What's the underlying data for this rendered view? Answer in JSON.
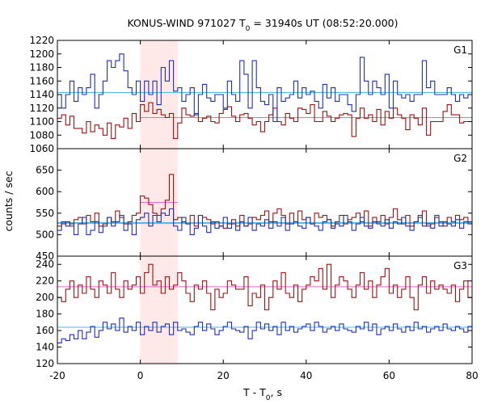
{
  "chart_data": {
    "type": "line",
    "title_main": "KONUS-WIND 971027 T",
    "title_sub": "0",
    "title_rest": " = 31940s UT (08:52:20.000)",
    "xlabel_main": "T - T",
    "xlabel_sub": "0",
    "xlabel_rest": ", s",
    "ylabel": "counts / sec",
    "xlim": [
      -20,
      80
    ],
    "x_ticks": [
      "-20",
      "0",
      "20",
      "40",
      "60",
      "80"
    ],
    "highlight_interval": [
      0,
      9
    ],
    "colors": {
      "background_band": "#ffe8e8",
      "series_red": "#a01010",
      "series_blue": "#2030b0",
      "bg_pink": "#ee66cc",
      "bg_cyan": "#44bbe8"
    },
    "bin_edges_start": -20,
    "bin_width": 1,
    "panels": [
      {
        "label": "G1",
        "ylim": [
          1060,
          1220
        ],
        "y_ticks": [
          "1060",
          "1080",
          "1100",
          "1120",
          "1140",
          "1160",
          "1180",
          "1200",
          "1220"
        ],
        "background_levels": [
          {
            "name": "red_bg",
            "value": 1106,
            "color": "bg_pink",
            "x_range": [
              0,
              80
            ]
          },
          {
            "name": "blue_bg",
            "value": 1143,
            "color": "bg_cyan",
            "x_range": [
              -20,
              80
            ]
          }
        ],
        "series": [
          {
            "color": "series_red",
            "values": [
              1105,
              1110,
              1095,
              1108,
              1090,
              1090,
              1083,
              1100,
              1085,
              1095,
              1090,
              1080,
              1098,
              1075,
              1095,
              1092,
              1105,
              1090,
              1112,
              1100,
              1125,
              1115,
              1128,
              1112,
              1118,
              1110,
              1106,
              1112,
              1075,
              1098,
              1120,
              1110,
              1108,
              1112,
              1100,
              1105,
              1108,
              1100,
              1098,
              1112,
              1118,
              1122,
              1108,
              1100,
              1110,
              1112,
              1105,
              1095,
              1100,
              1085,
              1100,
              1110,
              1120,
              1100,
              1095,
              1112,
              1105,
              1100,
              1120,
              1118,
              1112,
              1125,
              1100,
              1100,
              1115,
              1108,
              1100,
              1105,
              1110,
              1112,
              1110,
              1078,
              1105,
              1120,
              1105,
              1110,
              1100,
              1118,
              1095,
              1115,
              1105,
              1120,
              1110,
              1105,
              1088,
              1110,
              1105,
              1095,
              1120,
              1080,
              1100,
              1100,
              1100,
              1115,
              1125,
              1110,
              1110,
              1098,
              1100,
              1100
            ]
          },
          {
            "color": "series_blue",
            "values": [
              1140,
              1120,
              1140,
              1160,
              1130,
              1150,
              1140,
              1150,
              1170,
              1120,
              1140,
              1160,
              1190,
              1180,
              1190,
              1200,
              1175,
              1150,
              1140,
              1160,
              1130,
              1160,
              1140,
              1160,
              1125,
              1180,
              1160,
              1190,
              1145,
              1150,
              1130,
              1140,
              1150,
              1110,
              1140,
              1155,
              1135,
              1130,
              1140,
              1140,
              1120,
              1160,
              1140,
              1130,
              1190,
              1170,
              1120,
              1190,
              1150,
              1130,
              1125,
              1140,
              1100,
              1150,
              1130,
              1135,
              1140,
              1160,
              1135,
              1150,
              1140,
              1145,
              1130,
              1120,
              1155,
              1135,
              1150,
              1130,
              1140,
              1140,
              1125,
              1115,
              1140,
              1195,
              1160,
              1140,
              1160,
              1150,
              1140,
              1170,
              1120,
              1160,
              1140,
              1135,
              1140,
              1130,
              1140,
              1140,
              1190,
              1150,
              1160,
              1140,
              1140,
              1140,
              1150,
              1140,
              1130,
              1140,
              1135,
              1140
            ]
          }
        ]
      },
      {
        "label": "G2",
        "ylim": [
          450,
          700
        ],
        "y_ticks": [
          "450",
          "500",
          "550",
          "600",
          "650"
        ],
        "background_levels": [
          {
            "name": "red_bg",
            "value": 526,
            "color": "bg_pink",
            "x_range": [
              -20,
              80
            ]
          },
          {
            "name": "red_src",
            "value": 575,
            "color": "bg_pink",
            "x_range": [
              0,
              9
            ]
          },
          {
            "name": "blue_bg",
            "value": 528,
            "color": "bg_cyan",
            "x_range": [
              -20,
              80
            ]
          }
        ],
        "series": [
          {
            "color": "series_red",
            "values": [
              520,
              525,
              530,
              520,
              535,
              540,
              525,
              545,
              530,
              550,
              520,
              525,
              540,
              530,
              555,
              540,
              525,
              530,
              545,
              550,
              590,
              585,
              570,
              550,
              545,
              560,
              580,
              640,
              535,
              540,
              530,
              525,
              545,
              520,
              545,
              540,
              535,
              525,
              530,
              520,
              515,
              525,
              535,
              520,
              545,
              520,
              525,
              540,
              535,
              545,
              555,
              530,
              550,
              560,
              545,
              525,
              550,
              530,
              555,
              535,
              540,
              525,
              550,
              540,
              545,
              535,
              520,
              530,
              545,
              525,
              535,
              540,
              550,
              530,
              555,
              520,
              540,
              530,
              545,
              525,
              540,
              560,
              535,
              525,
              545,
              520,
              530,
              540,
              555,
              520,
              525,
              545,
              530,
              520,
              540,
              530,
              545,
              535,
              540,
              530
            ]
          },
          {
            "color": "series_blue",
            "values": [
              510,
              530,
              520,
              525,
              500,
              525,
              540,
              500,
              510,
              530,
              505,
              520,
              540,
              520,
              530,
              545,
              510,
              525,
              500,
              535,
              540,
              550,
              520,
              545,
              530,
              550,
              545,
              560,
              520,
              510,
              540,
              525,
              500,
              515,
              545,
              520,
              505,
              530,
              515,
              520,
              540,
              515,
              525,
              510,
              530,
              520,
              540,
              510,
              525,
              520,
              535,
              515,
              530,
              520,
              540,
              510,
              525,
              530,
              520,
              515,
              540,
              525,
              520,
              510,
              530,
              535,
              515,
              525,
              520,
              545,
              530,
              510,
              525,
              540,
              520,
              515,
              530,
              525,
              520,
              535,
              515,
              530,
              525,
              540,
              520,
              510,
              530,
              545,
              520,
              525,
              515,
              540,
              520,
              530,
              525,
              520,
              535,
              515,
              530,
              525
            ]
          }
        ]
      },
      {
        "label": "G3",
        "ylim": [
          120,
          250
        ],
        "y_ticks": [
          "120",
          "140",
          "160",
          "180",
          "200",
          "220",
          "240"
        ],
        "background_levels": [
          {
            "name": "red_bg",
            "value": 213,
            "color": "bg_pink",
            "x_range": [
              -20,
              80
            ]
          },
          {
            "name": "blue_bg",
            "value": 164,
            "color": "bg_cyan",
            "x_range": [
              -20,
              80
            ]
          }
        ],
        "series": [
          {
            "color": "series_red",
            "values": [
              200,
              195,
              210,
              220,
              200,
              215,
              205,
              225,
              210,
              200,
              220,
              215,
              205,
              230,
              210,
              200,
              220,
              210,
              215,
              225,
              205,
              230,
              240,
              215,
              220,
              205,
              225,
              210,
              215,
              230,
              220,
              205,
              195,
              215,
              210,
              220,
              205,
              185,
              210,
              200,
              205,
              220,
              215,
              210,
              210,
              225,
              190,
              205,
              200,
              215,
              185,
              200,
              220,
              210,
              230,
              205,
              200,
              215,
              195,
              210,
              215,
              225,
              220,
              235,
              210,
              240,
              200,
              215,
              225,
              220,
              210,
              200,
              215,
              230,
              210,
              220,
              200,
              215,
              225,
              235,
              205,
              215,
              200,
              210,
              225,
              200,
              185,
              215,
              225,
              205,
              220,
              210,
              215,
              210,
              205,
              215,
              195,
              210,
              220,
              200
            ]
          },
          {
            "color": "series_blue",
            "values": [
              145,
              150,
              148,
              155,
              150,
              160,
              150,
              158,
              165,
              152,
              160,
              170,
              162,
              168,
              160,
              175,
              158,
              165,
              160,
              170,
              155,
              165,
              160,
              170,
              158,
              165,
              168,
              155,
              170,
              160,
              162,
              158,
              155,
              165,
              170,
              160,
              168,
              162,
              155,
              160,
              165,
              170,
              162,
              160,
              158,
              165,
              150,
              160,
              170,
              162,
              168,
              160,
              165,
              155,
              170,
              160,
              165,
              158,
              162,
              165,
              168,
              160,
              170,
              165,
              158,
              162,
              165,
              160,
              168,
              162,
              160,
              158,
              165,
              162,
              170,
              160,
              168,
              155,
              162,
              165,
              160,
              168,
              162,
              158,
              165,
              160,
              170,
              162,
              165,
              158,
              162,
              165,
              160,
              168,
              162,
              160,
              165,
              162,
              158,
              165
            ]
          }
        ]
      }
    ]
  }
}
